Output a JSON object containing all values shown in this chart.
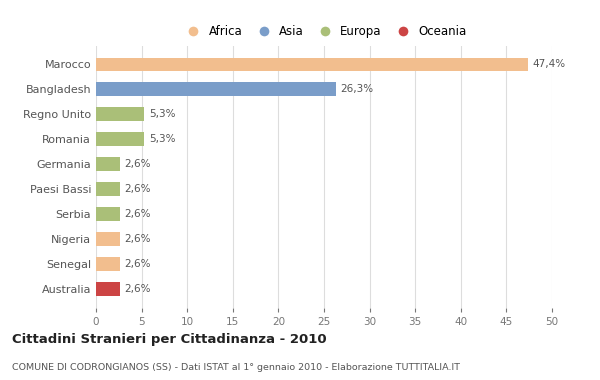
{
  "countries": [
    "Marocco",
    "Bangladesh",
    "Regno Unito",
    "Romania",
    "Germania",
    "Paesi Bassi",
    "Serbia",
    "Nigeria",
    "Senegal",
    "Australia"
  ],
  "values": [
    47.4,
    26.3,
    5.3,
    5.3,
    2.6,
    2.6,
    2.6,
    2.6,
    2.6,
    2.6
  ],
  "labels": [
    "47,4%",
    "26,3%",
    "5,3%",
    "5,3%",
    "2,6%",
    "2,6%",
    "2,6%",
    "2,6%",
    "2,6%",
    "2,6%"
  ],
  "colors": [
    "#F2BE8E",
    "#7A9DC9",
    "#AABF78",
    "#AABF78",
    "#AABF78",
    "#AABF78",
    "#AABF78",
    "#F2BE8E",
    "#F2BE8E",
    "#CC4444"
  ],
  "legend_labels": [
    "Africa",
    "Asia",
    "Europa",
    "Oceania"
  ],
  "legend_colors": [
    "#F2BE8E",
    "#7A9DC9",
    "#AABF78",
    "#CC4444"
  ],
  "xlim": [
    0,
    50
  ],
  "xticks": [
    0,
    5,
    10,
    15,
    20,
    25,
    30,
    35,
    40,
    45,
    50
  ],
  "title": "Cittadini Stranieri per Cittadinanza - 2010",
  "subtitle": "COMUNE DI CODRONGIANOS (SS) - Dati ISTAT al 1° gennaio 2010 - Elaborazione TUTTITALIA.IT",
  "background_color": "#FFFFFF",
  "grid_color": "#DDDDDD",
  "label_color": "#777777",
  "text_color": "#555555"
}
